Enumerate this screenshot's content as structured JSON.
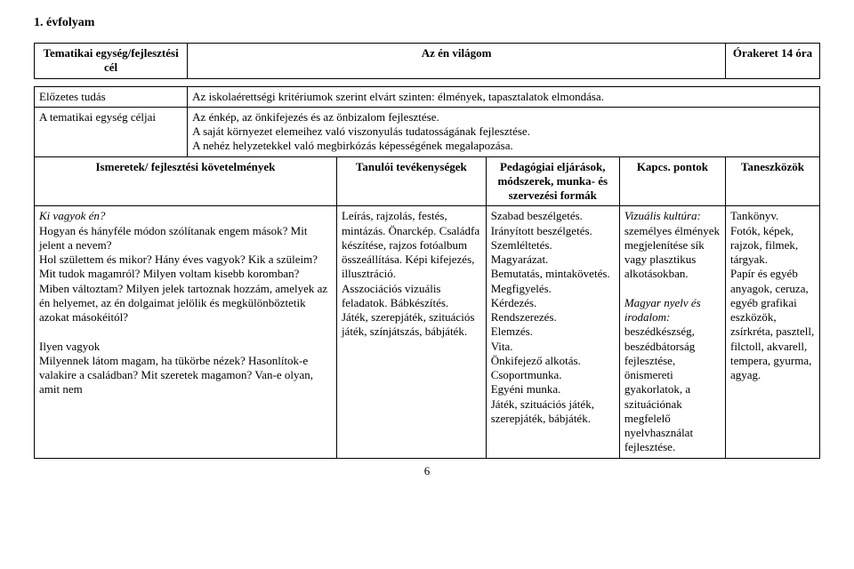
{
  "grade": "1. évfolyam",
  "header": {
    "c1": "Tematikai egység/fejlesztési cél",
    "c2": "Az én világom",
    "c3": "Órakeret 14 óra"
  },
  "row_elo": {
    "label": "Előzetes tudás",
    "text": "Az iskolaérettségi kritériumok szerint elvárt szinten: élmények, tapasztalatok elmondása."
  },
  "row_cel": {
    "label": "A tematikai egység céljai",
    "text": "Az énkép, az önkifejezés és az önbizalom fejlesztése.\nA saját környezet elemeihez való viszonyulás tudatosságának fejlesztése.\nA nehéz helyzetekkel való megbirkózás képességének megalapozása."
  },
  "subheader": {
    "c1": "Ismeretek/ fejlesztési követelmények",
    "c2": "Tanulói tevékenységek",
    "c3": "Pedagógiai eljárások, módszerek, munka- és szervezési formák",
    "c4": "Kapcs. pontok",
    "c5": "Taneszközök"
  },
  "body": {
    "c1": "Ki vagyok én?\nHogyan és hányféle módon szólítanak engem mások? Mit jelent a nevem?\nHol születtem és mikor? Hány éves vagyok? Kik a szüleim? Mit tudok magamról? Milyen voltam kisebb koromban? Miben változtam? Milyen jelek tartoznak hozzám, amelyek az én helyemet, az én dolgaimat jelölik és megkülönböztetik azokat másokéitól?\n\nIlyen vagyok\nMilyennek látom magam, ha tükörbe nézek? Hasonlítok-e valakire a családban? Mit szeretek magamon? Van-e olyan, amit nem",
    "c2": "Leírás, rajzolás, festés, mintázás. Önarckép. Családfa készítése, rajzos fotóalbum összeállítása. Képi kifejezés, illusztráció.\nAsszociációs vizuális feladatok. Bábkészítés.\nJáték, szerepjáték, szituációs játék, színjátszás, bábjáték.",
    "c3": "Szabad beszélgetés.\nIrányított beszélgetés.\nSzemléltetés.\nMagyarázat.\nBemutatás, mintakövetés.\nMegfigyelés.\nKérdezés.\nRendszerezés.\nElemzés.\nVita.\nÖnkifejező alkotás.\nCsoportmunka.\nEgyéni munka.\nJáték, szituációs játék, szerepjáték, bábjáték.",
    "c4": "Vizuális kultúra: személyes élmények megjelenítése sík vagy plasztikus alkotásokban.\n\nMagyar nyelv és irodalom: beszédkészség, beszédbátorság fejlesztése, önismereti gyakorlatok, a szituációnak megfelelő nyelvhasználat fejlesztése.",
    "c5": "Tankönyv.\nFotók, képek, rajzok, filmek, tárgyak.\nPapír és egyéb anyagok, ceruza, egyéb grafikai eszközök, zsírkréta, pasztell, filctoll, akvarell, tempera, gyurma, agyag."
  },
  "pagenum": "6"
}
